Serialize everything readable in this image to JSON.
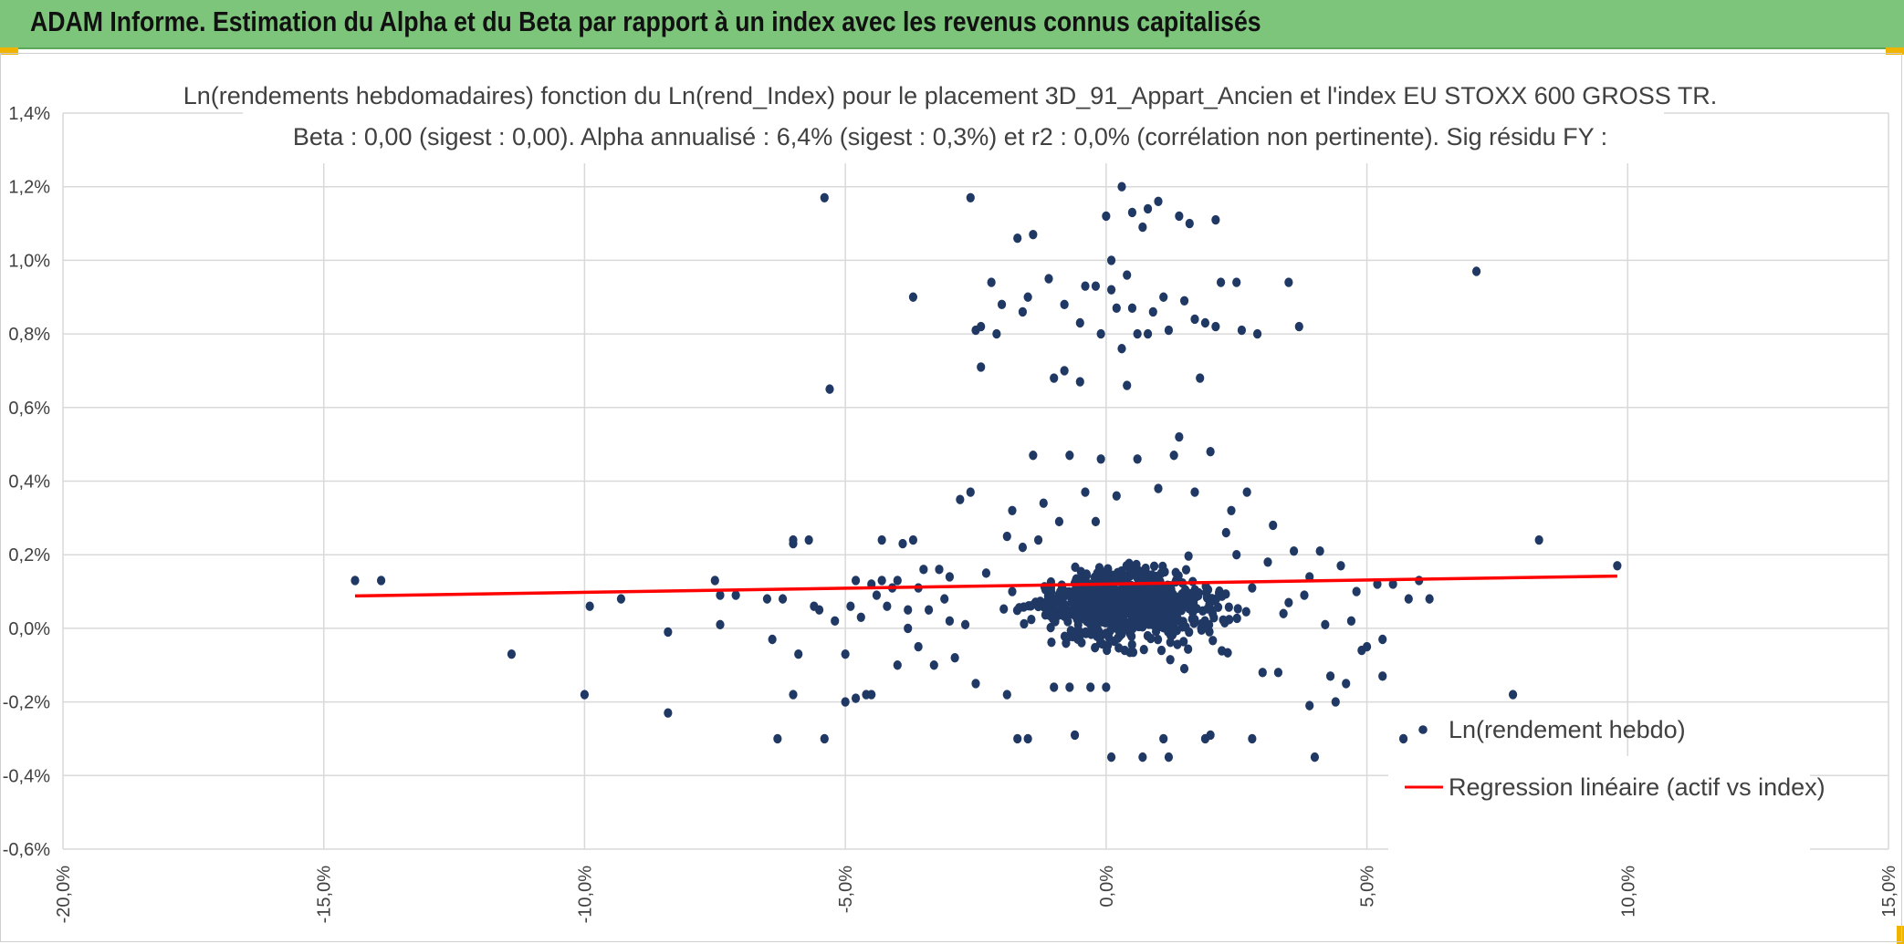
{
  "banner": {
    "title": "ADAM Informe. Estimation du Alpha et du Beta par rapport à un index avec les revenus connus capitalisés",
    "background": "#7dc57a"
  },
  "chart_data": {
    "type": "scatter",
    "title": "Ln(rendements hebdomadaires) fonction du Ln(rend_Index) pour le placement 3D_91_Appart_Ancien et l'index EU STOXX 600 GROSS TR.",
    "subtitle": "Beta : 0,00 (sigest : 0,00). Alpha annualisé : 6,4% (sigest : 0,3%) et r2 : 0,0% (corrélation non pertinente). Sig résidu FY :",
    "xlabel": "",
    "ylabel": "",
    "xlim": [
      -0.2,
      0.15
    ],
    "ylim": [
      -0.006,
      0.014
    ],
    "x_ticks": [
      -0.2,
      -0.15,
      -0.1,
      -0.05,
      0.0,
      0.05,
      0.1,
      0.15
    ],
    "x_tick_labels": [
      "-20,0%",
      "-15,0%",
      "-10,0%",
      "-5,0%",
      "0,0%",
      "5,0%",
      "10,0%",
      "15,0%"
    ],
    "y_ticks": [
      -0.006,
      -0.004,
      -0.002,
      0.0,
      0.002,
      0.004,
      0.006,
      0.008,
      0.01,
      0.012,
      0.014
    ],
    "y_tick_labels": [
      "-0,6%",
      "-0,4%",
      "-0,2%",
      "0,0%",
      "0,2%",
      "0,4%",
      "0,6%",
      "0,8%",
      "1,0%",
      "1,2%",
      "1,4%"
    ],
    "grid": true,
    "legend_position": "bottom-right",
    "series": [
      {
        "name": "Ln(rendement hebdo)",
        "kind": "scatter",
        "color": "#203864",
        "points": [
          [
            -0.144,
            0.0013
          ],
          [
            -0.139,
            0.0013
          ],
          [
            -0.114,
            -0.0007
          ],
          [
            -0.1,
            -0.0018
          ],
          [
            -0.099,
            0.0006
          ],
          [
            -0.093,
            0.0008
          ],
          [
            -0.084,
            -0.0023
          ],
          [
            -0.084,
            -0.0001
          ],
          [
            -0.075,
            0.0013
          ],
          [
            -0.074,
            0.0009
          ],
          [
            -0.074,
            0.0001
          ],
          [
            -0.071,
            0.0009
          ],
          [
            -0.065,
            0.0008
          ],
          [
            -0.064,
            -0.0003
          ],
          [
            -0.063,
            -0.003
          ],
          [
            -0.062,
            0.0008
          ],
          [
            -0.06,
            0.0024
          ],
          [
            -0.06,
            0.0023
          ],
          [
            -0.06,
            -0.0018
          ],
          [
            -0.059,
            -0.0007
          ],
          [
            -0.057,
            0.0024
          ],
          [
            -0.056,
            0.0006
          ],
          [
            -0.055,
            0.0005
          ],
          [
            -0.054,
            0.0117
          ],
          [
            -0.054,
            -0.003
          ],
          [
            -0.053,
            0.0065
          ],
          [
            -0.052,
            0.0002
          ],
          [
            -0.05,
            -0.0007
          ],
          [
            -0.05,
            -0.002
          ],
          [
            -0.049,
            0.0006
          ],
          [
            -0.048,
            0.0013
          ],
          [
            -0.048,
            -0.0019
          ],
          [
            -0.047,
            0.0003
          ],
          [
            -0.046,
            -0.0018
          ],
          [
            -0.045,
            -0.0018
          ],
          [
            -0.045,
            0.0012
          ],
          [
            -0.044,
            0.0009
          ],
          [
            -0.043,
            0.0024
          ],
          [
            -0.043,
            0.0013
          ],
          [
            -0.042,
            0.0006
          ],
          [
            -0.041,
            0.0011
          ],
          [
            -0.04,
            -0.001
          ],
          [
            -0.04,
            0.0013
          ],
          [
            -0.039,
            0.0023
          ],
          [
            -0.038,
            0.0005
          ],
          [
            -0.038,
            0.0
          ],
          [
            -0.037,
            0.009
          ],
          [
            -0.037,
            0.0024
          ],
          [
            -0.036,
            -0.0005
          ],
          [
            -0.036,
            0.0011
          ],
          [
            -0.035,
            0.0016
          ],
          [
            -0.034,
            0.0005
          ],
          [
            -0.033,
            -0.001
          ],
          [
            -0.032,
            0.0016
          ],
          [
            -0.031,
            0.0008
          ],
          [
            -0.03,
            0.0002
          ],
          [
            -0.03,
            0.0014
          ],
          [
            -0.029,
            -0.0008
          ],
          [
            -0.028,
            0.0035
          ],
          [
            -0.027,
            0.0001
          ],
          [
            -0.026,
            0.0037
          ],
          [
            -0.026,
            0.0117
          ],
          [
            -0.025,
            0.0081
          ],
          [
            -0.025,
            -0.0015
          ],
          [
            -0.024,
            0.0082
          ],
          [
            -0.024,
            0.0071
          ],
          [
            -0.023,
            0.0015
          ],
          [
            -0.022,
            0.0094
          ],
          [
            -0.021,
            0.008
          ],
          [
            -0.02,
            0.0088
          ],
          [
            -0.019,
            0.0025
          ],
          [
            -0.019,
            -0.0018
          ],
          [
            -0.018,
            0.0032
          ],
          [
            -0.018,
            0.001
          ],
          [
            -0.017,
            0.0106
          ],
          [
            -0.017,
            -0.003
          ],
          [
            -0.016,
            0.0086
          ],
          [
            -0.016,
            0.0022
          ],
          [
            -0.015,
            -0.003
          ],
          [
            -0.015,
            0.009
          ],
          [
            -0.014,
            0.0107
          ],
          [
            -0.014,
            0.0047
          ],
          [
            -0.013,
            0.0024
          ],
          [
            -0.012,
            0.0034
          ],
          [
            -0.011,
            0.0095
          ],
          [
            -0.01,
            0.0068
          ],
          [
            -0.01,
            -0.0016
          ],
          [
            -0.009,
            0.0029
          ],
          [
            -0.008,
            0.007
          ],
          [
            -0.008,
            0.0088
          ],
          [
            -0.007,
            0.0047
          ],
          [
            -0.007,
            -0.0016
          ],
          [
            -0.006,
            -0.0029
          ],
          [
            -0.005,
            0.0083
          ],
          [
            -0.005,
            0.0067
          ],
          [
            -0.004,
            0.0093
          ],
          [
            -0.004,
            0.0037
          ],
          [
            -0.003,
            -0.0016
          ],
          [
            -0.002,
            0.0093
          ],
          [
            -0.002,
            0.0029
          ],
          [
            -0.001,
            0.008
          ],
          [
            -0.001,
            0.0046
          ],
          [
            0.0,
            0.0112
          ],
          [
            0.0,
            -0.0016
          ],
          [
            0.001,
            0.0092
          ],
          [
            0.001,
            0.01
          ],
          [
            0.001,
            -0.0035
          ],
          [
            0.002,
            0.0087
          ],
          [
            0.002,
            0.0036
          ],
          [
            0.003,
            0.012
          ],
          [
            0.003,
            0.0076
          ],
          [
            0.004,
            0.0066
          ],
          [
            0.004,
            0.0096
          ],
          [
            0.005,
            0.0087
          ],
          [
            0.005,
            0.0113
          ],
          [
            0.006,
            0.008
          ],
          [
            0.006,
            0.0046
          ],
          [
            0.007,
            0.0109
          ],
          [
            0.007,
            -0.0035
          ],
          [
            0.008,
            0.008
          ],
          [
            0.008,
            0.0114
          ],
          [
            0.009,
            0.0086
          ],
          [
            0.01,
            0.0116
          ],
          [
            0.01,
            0.0038
          ],
          [
            0.011,
            0.009
          ],
          [
            0.011,
            -0.003
          ],
          [
            0.012,
            -0.0035
          ],
          [
            0.012,
            0.0081
          ],
          [
            0.013,
            0.0047
          ],
          [
            0.014,
            0.0112
          ],
          [
            0.014,
            0.0052
          ],
          [
            0.015,
            0.0089
          ],
          [
            0.016,
            0.011
          ],
          [
            0.017,
            0.0084
          ],
          [
            0.017,
            0.0037
          ],
          [
            0.018,
            0.0068
          ],
          [
            0.019,
            -0.003
          ],
          [
            0.019,
            0.0083
          ],
          [
            0.02,
            0.0048
          ],
          [
            0.02,
            -0.0029
          ],
          [
            0.021,
            0.0111
          ],
          [
            0.021,
            0.0082
          ],
          [
            0.022,
            0.0094
          ],
          [
            0.023,
            0.0026
          ],
          [
            0.024,
            0.0032
          ],
          [
            0.025,
            0.0094
          ],
          [
            0.025,
            0.002
          ],
          [
            0.026,
            0.0081
          ],
          [
            0.027,
            0.0037
          ],
          [
            0.028,
            0.0011
          ],
          [
            0.028,
            -0.003
          ],
          [
            0.029,
            0.008
          ],
          [
            0.03,
            -0.0012
          ],
          [
            0.031,
            0.0018
          ],
          [
            0.032,
            0.0028
          ],
          [
            0.033,
            -0.0012
          ],
          [
            0.034,
            0.0004
          ],
          [
            0.035,
            0.0007
          ],
          [
            0.035,
            0.0094
          ],
          [
            0.036,
            0.0021
          ],
          [
            0.037,
            0.0082
          ],
          [
            0.038,
            0.0009
          ],
          [
            0.039,
            0.0014
          ],
          [
            0.039,
            -0.0021
          ],
          [
            0.04,
            -0.0035
          ],
          [
            0.041,
            0.0021
          ],
          [
            0.042,
            0.0001
          ],
          [
            0.043,
            -0.0013
          ],
          [
            0.044,
            -0.002
          ],
          [
            0.045,
            0.0017
          ],
          [
            0.046,
            -0.0015
          ],
          [
            0.047,
            0.0002
          ],
          [
            0.048,
            0.001
          ],
          [
            0.049,
            -0.0006
          ],
          [
            0.05,
            -0.0005
          ],
          [
            0.052,
            0.0012
          ],
          [
            0.053,
            -0.0003
          ],
          [
            0.053,
            -0.0013
          ],
          [
            0.055,
            0.0012
          ],
          [
            0.057,
            -0.003
          ],
          [
            0.058,
            0.0008
          ],
          [
            0.06,
            0.0013
          ],
          [
            0.062,
            0.0008
          ],
          [
            0.071,
            0.0097
          ],
          [
            0.078,
            -0.0018
          ],
          [
            0.083,
            0.0024
          ],
          [
            0.098,
            0.0017
          ]
        ]
      },
      {
        "name": "Regression linéaire (actif vs index)",
        "kind": "line",
        "color": "#ff0000",
        "points": [
          [
            -0.144,
            0.00088
          ],
          [
            0.098,
            0.00142
          ]
        ]
      }
    ]
  }
}
